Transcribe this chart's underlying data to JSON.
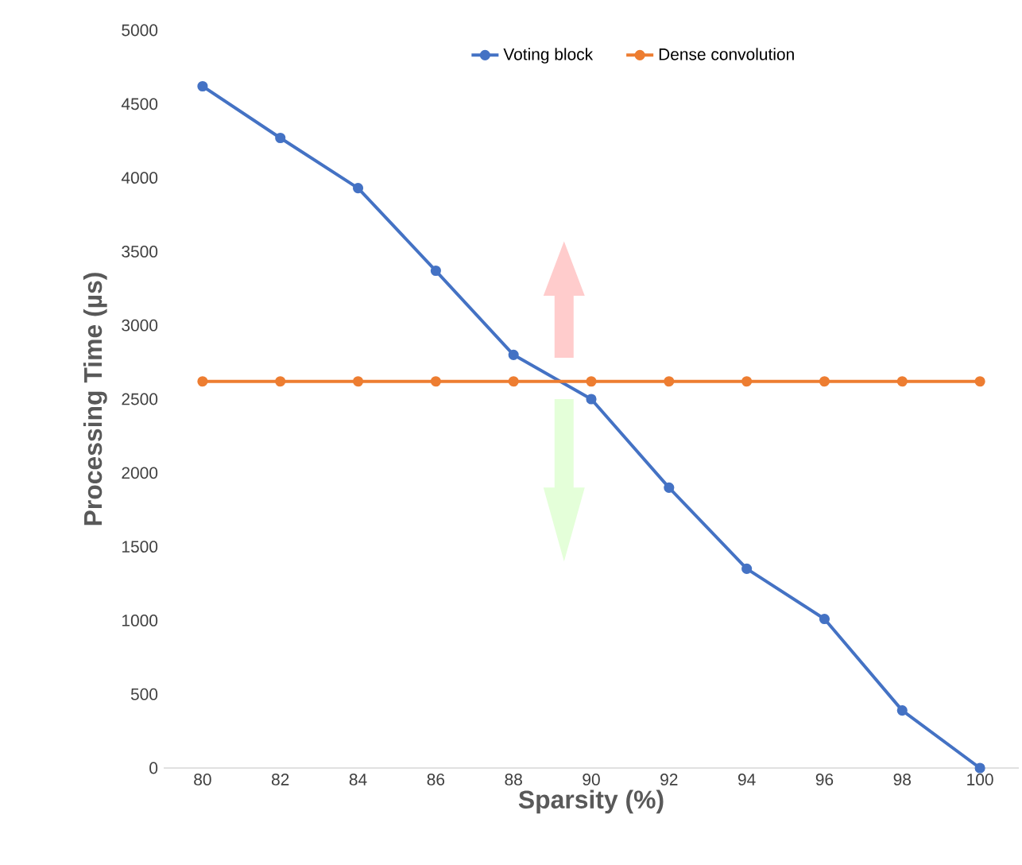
{
  "chart_data": {
    "type": "line",
    "xlabel": "Sparsity (%)",
    "ylabel": "Processing Time (µs)",
    "categories": [
      "80",
      "82",
      "84",
      "86",
      "88",
      "90",
      "92",
      "94",
      "96",
      "98",
      "100"
    ],
    "series": [
      {
        "name": "Voting block",
        "color": "#4472c4",
        "values": [
          4620,
          4270,
          3930,
          3370,
          2800,
          2500,
          1900,
          1350,
          1010,
          390,
          0
        ]
      },
      {
        "name": "Dense convolution",
        "color": "#ed7d31",
        "values": [
          2620,
          2620,
          2620,
          2620,
          2620,
          2620,
          2620,
          2620,
          2620,
          2620,
          2620
        ]
      }
    ],
    "ylim": [
      0,
      5000
    ],
    "yticks": [
      0,
      500,
      1000,
      1500,
      2000,
      2500,
      3000,
      3500,
      4000,
      4500,
      5000
    ],
    "grid": false,
    "legend": "top",
    "marker": "circle",
    "line_style": "solid"
  }
}
